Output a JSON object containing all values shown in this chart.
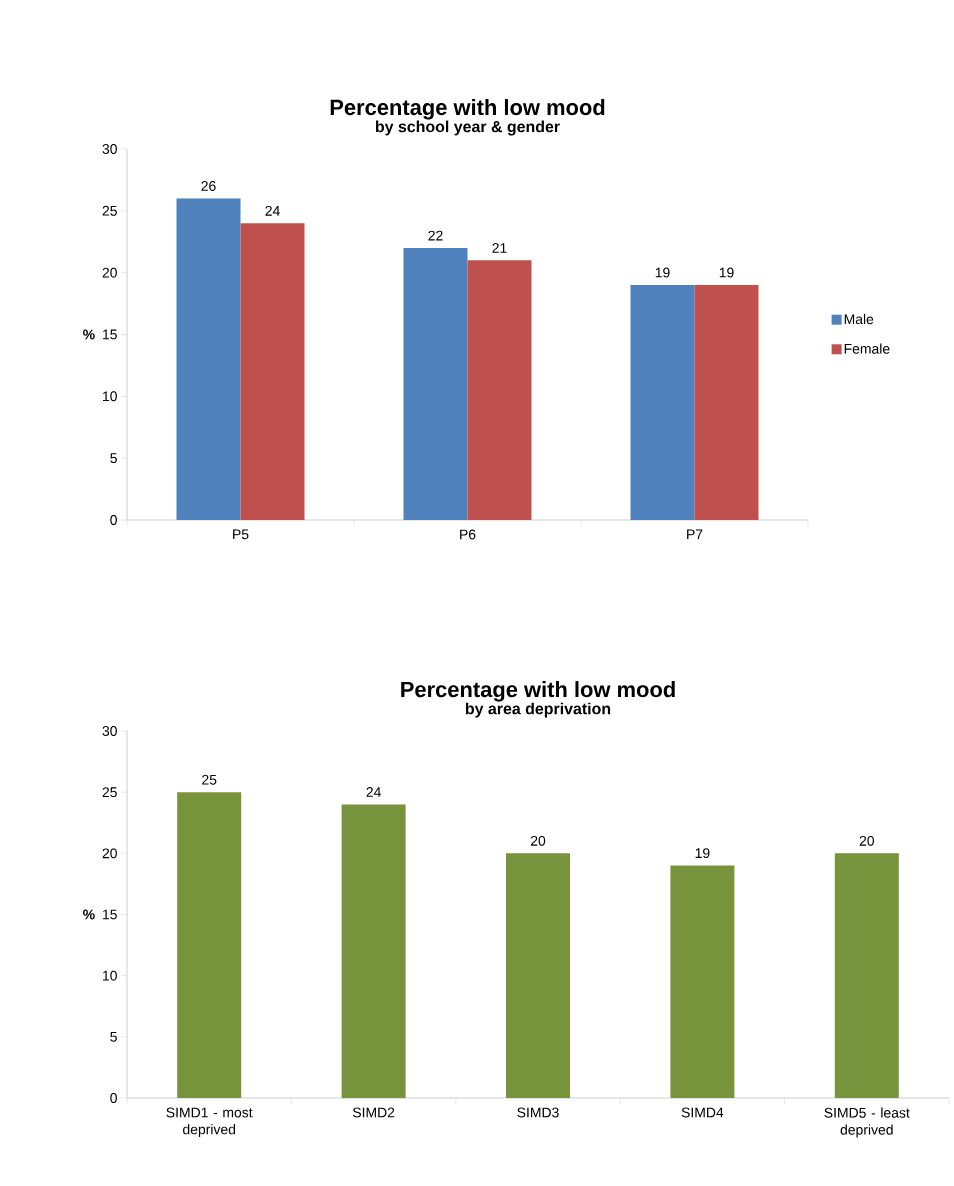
{
  "chart_data": [
    {
      "type": "bar",
      "title": "Percentage with low mood",
      "subtitle": "by school year & gender",
      "ylabel": "%",
      "categories": [
        "P5",
        "P6",
        "P7"
      ],
      "series": [
        {
          "name": "Male",
          "color": "#4f81bd",
          "values": [
            26,
            22,
            19
          ]
        },
        {
          "name": "Female",
          "color": "#c0504d",
          "values": [
            24,
            21,
            19
          ]
        }
      ],
      "ylim": [
        0,
        30
      ],
      "yticks": [
        0,
        5,
        10,
        15,
        20,
        25,
        30
      ],
      "data_labels": true,
      "legend": "right"
    },
    {
      "type": "bar",
      "title": "Percentage with low mood",
      "subtitle": "by area deprivation",
      "ylabel": "%",
      "categories": [
        "SIMD1 - most deprived",
        "SIMD2",
        "SIMD3",
        "SIMD4",
        "SIMD5 - least deprived"
      ],
      "values": [
        25,
        24,
        20,
        19,
        20
      ],
      "color": "#77933c",
      "ylim": [
        0,
        30
      ],
      "yticks": [
        0,
        5,
        10,
        15,
        20,
        25,
        30
      ],
      "data_labels": true
    }
  ]
}
